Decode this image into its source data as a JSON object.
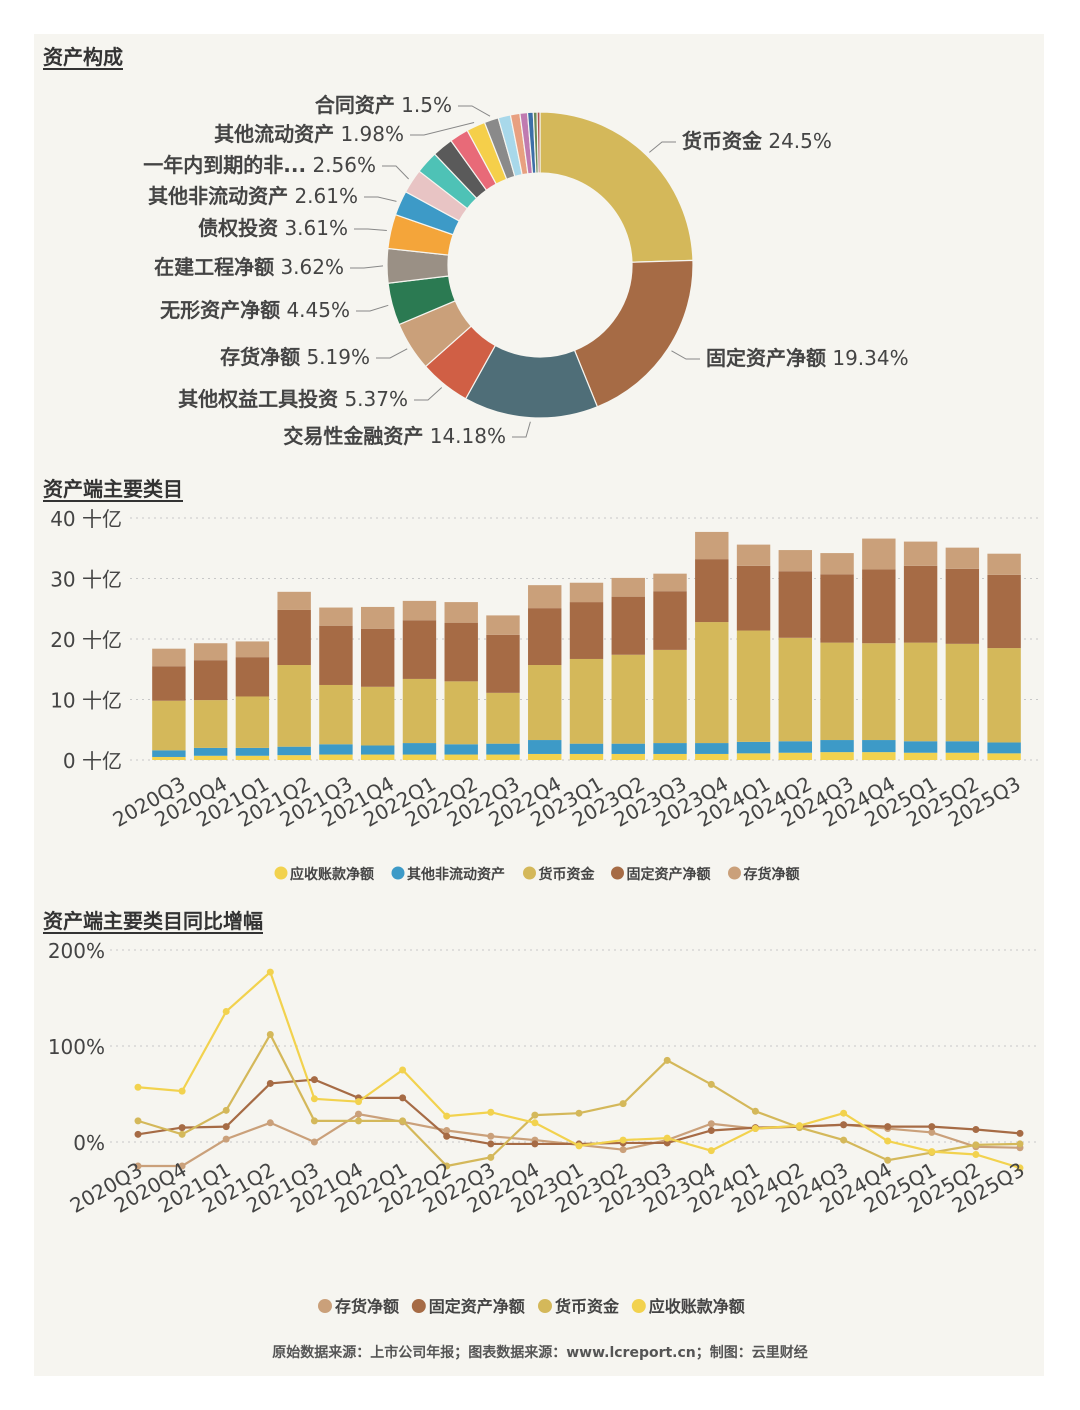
{
  "sections": {
    "pie_title": "资产构成",
    "bar_title": "资产端主要类目",
    "line_title": "资产端主要类目同比增幅"
  },
  "footer": "原始数据来源：上市公司年报；图表数据来源：www.lcreport.cn；制图：云里财经",
  "chart_data": [
    {
      "type": "pie",
      "title": "资产构成",
      "donut": true,
      "slices": [
        {
          "name": "货币资金",
          "value": 24.5,
          "label": "24.5%",
          "color": "#d4b85a"
        },
        {
          "name": "固定资产净额",
          "value": 19.34,
          "label": "19.34%",
          "color": "#a66b45"
        },
        {
          "name": "交易性金融资产",
          "value": 14.18,
          "label": "14.18%",
          "color": "#4f6e78"
        },
        {
          "name": "其他权益工具投资",
          "value": 5.37,
          "label": "5.37%",
          "color": "#d05f45"
        },
        {
          "name": "存货净额",
          "value": 5.19,
          "label": "5.19%",
          "color": "#caa07a"
        },
        {
          "name": "无形资产净额",
          "value": 4.45,
          "label": "4.45%",
          "color": "#2b7a52"
        },
        {
          "name": "在建工程净额",
          "value": 3.62,
          "label": "3.62%",
          "color": "#9a9085"
        },
        {
          "name": "债权投资",
          "value": 3.61,
          "label": "3.61%",
          "color": "#f4a53a"
        },
        {
          "name": "其他非流动资产",
          "value": 2.61,
          "label": "2.61%",
          "color": "#3d9ac7"
        },
        {
          "name": "一年内到期的非...",
          "value": 2.56,
          "label": "2.56%",
          "color": "#e8c4c4"
        },
        {
          "name": "",
          "value": 2.4,
          "label": "",
          "color": "#4ec2b6"
        },
        {
          "name": "",
          "value": 2.2,
          "label": "",
          "color": "#5a5a5a"
        },
        {
          "name": "",
          "value": 2.0,
          "label": "",
          "color": "#e86a78"
        },
        {
          "name": "其他流动资产",
          "value": 1.98,
          "label": "1.98%",
          "color": "#f5cf4a"
        },
        {
          "name": "合同资产",
          "value": 1.5,
          "label": "1.5%",
          "color": "#8a8a8a"
        },
        {
          "name": "",
          "value": 1.3,
          "label": "",
          "color": "#a8d8ea"
        },
        {
          "name": "",
          "value": 1.0,
          "label": "",
          "color": "#e8a080"
        },
        {
          "name": "",
          "value": 0.8,
          "label": "",
          "color": "#c07ab0"
        },
        {
          "name": "",
          "value": 0.6,
          "label": "",
          "color": "#3d6fa8"
        },
        {
          "name": "",
          "value": 0.4,
          "label": "",
          "color": "#6a8a5a"
        },
        {
          "name": "",
          "value": 0.3,
          "label": "",
          "color": "#b05050"
        }
      ]
    },
    {
      "type": "bar",
      "stacked": true,
      "title": "资产端主要类目",
      "categories": [
        "2020Q3",
        "2020Q4",
        "2021Q1",
        "2021Q2",
        "2021Q3",
        "2021Q4",
        "2022Q1",
        "2022Q2",
        "2022Q3",
        "2022Q4",
        "2023Q1",
        "2023Q2",
        "2023Q3",
        "2023Q4",
        "2024Q1",
        "2024Q2",
        "2024Q3",
        "2024Q4",
        "2025Q1",
        "2025Q2",
        "2025Q3"
      ],
      "ylim": [
        0,
        40
      ],
      "yticks": [
        0,
        10,
        20,
        30,
        40
      ],
      "yunit": " 十亿",
      "series": [
        {
          "name": "应收账款净额",
          "color": "#f2d24e",
          "values": [
            0.5,
            0.7,
            0.7,
            0.8,
            0.9,
            0.9,
            0.9,
            0.9,
            0.9,
            1.0,
            1.0,
            1.0,
            1.0,
            1.0,
            1.1,
            1.2,
            1.3,
            1.3,
            1.2,
            1.2,
            1.1
          ]
        },
        {
          "name": "其他非流动资产",
          "color": "#3d9ac7",
          "values": [
            1.1,
            1.3,
            1.3,
            1.4,
            1.7,
            1.5,
            1.9,
            1.7,
            1.8,
            2.3,
            1.7,
            1.7,
            1.8,
            1.8,
            1.9,
            1.9,
            2.0,
            2.0,
            1.9,
            1.9,
            1.8
          ]
        },
        {
          "name": "货币资金",
          "color": "#d4b85a",
          "values": [
            8.2,
            7.9,
            8.5,
            13.5,
            9.8,
            9.7,
            10.6,
            10.4,
            8.4,
            12.4,
            14.0,
            14.7,
            15.4,
            20.0,
            18.4,
            17.1,
            16.1,
            16.0,
            16.3,
            16.1,
            15.6
          ]
        },
        {
          "name": "固定资产净额",
          "color": "#a66b45",
          "values": [
            5.7,
            6.6,
            6.5,
            9.1,
            9.8,
            9.6,
            9.7,
            9.7,
            9.6,
            9.4,
            9.4,
            9.6,
            9.7,
            10.4,
            10.7,
            11.0,
            11.3,
            12.2,
            12.7,
            12.4,
            12.1
          ]
        },
        {
          "name": "存货净额",
          "color": "#caa07a",
          "values": [
            2.9,
            2.8,
            2.6,
            3.0,
            3.0,
            3.6,
            3.2,
            3.4,
            3.2,
            3.8,
            3.2,
            3.1,
            2.9,
            4.5,
            3.5,
            3.5,
            3.5,
            5.1,
            4.0,
            3.5,
            3.5
          ]
        }
      ]
    },
    {
      "type": "line",
      "title": "资产端主要类目同比增幅",
      "categories": [
        "2020Q3",
        "2020Q4",
        "2021Q1",
        "2021Q2",
        "2021Q3",
        "2021Q4",
        "2022Q1",
        "2022Q2",
        "2022Q3",
        "2022Q4",
        "2023Q1",
        "2023Q2",
        "2023Q3",
        "2023Q4",
        "2024Q1",
        "2024Q2",
        "2024Q3",
        "2024Q4",
        "2025Q1",
        "2025Q2",
        "2025Q3"
      ],
      "ylim": [
        -50,
        200
      ],
      "yticks": [
        "200%",
        "100%",
        "0%"
      ],
      "ytick_values": [
        200,
        100,
        0
      ],
      "series": [
        {
          "name": "存货净额",
          "color": "#caa07a",
          "values": [
            -25,
            -25,
            3,
            20,
            0,
            29,
            21,
            12,
            6,
            2,
            -3,
            -8,
            2,
            19,
            14,
            16,
            18,
            14,
            10,
            -5,
            -6
          ]
        },
        {
          "name": "固定资产净额",
          "color": "#a66b45",
          "values": [
            8,
            15,
            16,
            61,
            65,
            46,
            46,
            6,
            -2,
            -2,
            -2,
            -1,
            -1,
            12,
            15,
            16,
            18,
            16,
            16,
            13,
            9
          ]
        },
        {
          "name": "货币资金",
          "color": "#d4b85a",
          "values": [
            22,
            8,
            33,
            112,
            22,
            22,
            22,
            -25,
            -16,
            28,
            30,
            40,
            85,
            60,
            32,
            15,
            2,
            -19,
            -11,
            -3,
            -2
          ]
        },
        {
          "name": "应收账款净额",
          "color": "#f2d24e",
          "values": [
            57,
            53,
            136,
            177,
            45,
            42,
            75,
            27,
            31,
            20,
            -4,
            2,
            4,
            -9,
            14,
            17,
            30,
            1,
            -10,
            -13,
            -27
          ]
        }
      ]
    }
  ]
}
